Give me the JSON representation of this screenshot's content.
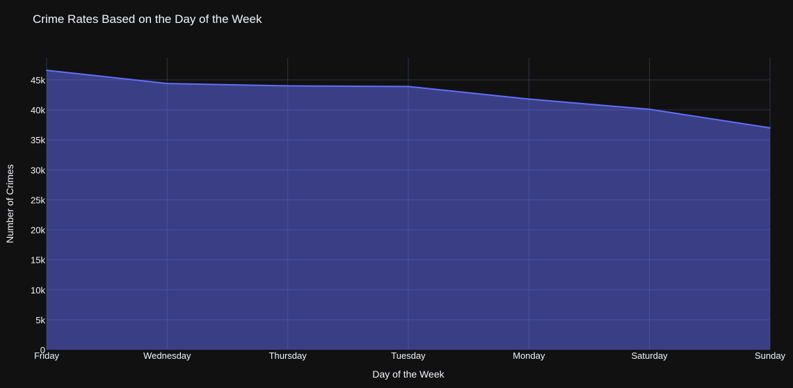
{
  "chart_data": {
    "type": "area",
    "title": "Crime Rates Based on the Day of the Week",
    "xlabel": "Day of the Week",
    "ylabel": "Number of Crimes",
    "categories": [
      "Friday",
      "Wednesday",
      "Thursday",
      "Tuesday",
      "Monday",
      "Saturday",
      "Sunday"
    ],
    "values": [
      46600,
      44400,
      44000,
      43900,
      41800,
      40100,
      37000
    ],
    "ylim": [
      0,
      48700
    ],
    "yticks": [
      0,
      5000,
      10000,
      15000,
      20000,
      25000,
      30000,
      35000,
      40000,
      45000
    ],
    "ytick_labels": [
      "0",
      "5k",
      "10k",
      "15k",
      "20k",
      "25k",
      "30k",
      "35k",
      "40k",
      "45k"
    ],
    "grid": true,
    "colors": {
      "background": "#111111",
      "line": "#636efa",
      "fill": "#3e4383",
      "grid": "#2f3446",
      "text": "#f2f5fa"
    }
  }
}
